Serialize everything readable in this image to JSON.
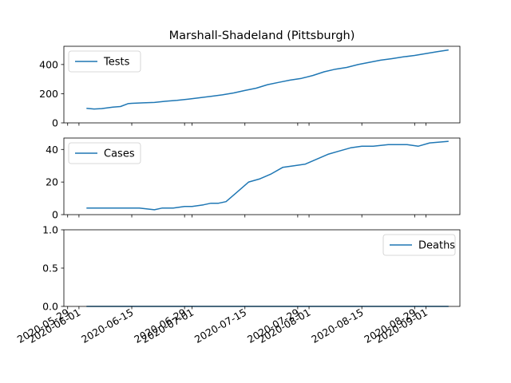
{
  "chart_data": [
    {
      "type": "line",
      "title": "Marshall-Shadeland (Pittsburgh)",
      "xlabel": "",
      "ylabel": "",
      "x_range": [
        "2020-05-28",
        "2020-09-10"
      ],
      "ylim": [
        0,
        525
      ],
      "yticks": [
        "0",
        "200",
        "400"
      ],
      "grid": false,
      "legend": "top-left",
      "x": [
        "2020-06-03",
        "2020-06-05",
        "2020-06-07",
        "2020-06-10",
        "2020-06-12",
        "2020-06-14",
        "2020-06-15",
        "2020-06-18",
        "2020-06-21",
        "2020-06-24",
        "2020-06-27",
        "2020-06-30",
        "2020-07-03",
        "2020-07-06",
        "2020-07-09",
        "2020-07-12",
        "2020-07-15",
        "2020-07-18",
        "2020-07-21",
        "2020-07-24",
        "2020-07-27",
        "2020-07-30",
        "2020-08-02",
        "2020-08-05",
        "2020-08-08",
        "2020-08-11",
        "2020-08-14",
        "2020-08-17",
        "2020-08-20",
        "2020-08-23",
        "2020-08-26",
        "2020-08-29",
        "2020-09-01",
        "2020-09-04",
        "2020-09-07"
      ],
      "series": [
        {
          "name": "Tests",
          "color": "#1f77b4",
          "values": [
            100,
            95,
            98,
            108,
            112,
            132,
            134,
            137,
            140,
            148,
            154,
            163,
            172,
            182,
            192,
            205,
            222,
            238,
            262,
            278,
            293,
            305,
            325,
            350,
            368,
            380,
            400,
            415,
            430,
            440,
            452,
            462,
            475,
            488,
            500
          ]
        }
      ]
    },
    {
      "type": "line",
      "title": "",
      "xlabel": "",
      "ylabel": "",
      "x_range": [
        "2020-05-28",
        "2020-09-10"
      ],
      "ylim": [
        0,
        47
      ],
      "yticks": [
        "0",
        "20",
        "40"
      ],
      "grid": false,
      "legend": "top-left",
      "x": [
        "2020-06-03",
        "2020-06-10",
        "2020-06-17",
        "2020-06-21",
        "2020-06-23",
        "2020-06-26",
        "2020-06-29",
        "2020-07-01",
        "2020-07-04",
        "2020-07-06",
        "2020-07-08",
        "2020-07-10",
        "2020-07-13",
        "2020-07-16",
        "2020-07-19",
        "2020-07-22",
        "2020-07-25",
        "2020-07-28",
        "2020-07-31",
        "2020-08-03",
        "2020-08-06",
        "2020-08-09",
        "2020-08-12",
        "2020-08-15",
        "2020-08-18",
        "2020-08-22",
        "2020-08-24",
        "2020-08-27",
        "2020-08-30",
        "2020-09-02",
        "2020-09-07"
      ],
      "series": [
        {
          "name": "Cases",
          "color": "#1f77b4",
          "values": [
            4,
            4,
            4,
            3,
            4,
            4,
            5,
            5,
            6,
            7,
            7,
            8,
            14,
            20,
            22,
            25,
            29,
            30,
            31,
            34,
            37,
            39,
            41,
            42,
            42,
            43,
            43,
            43,
            42,
            44,
            45
          ]
        }
      ]
    },
    {
      "type": "line",
      "title": "",
      "xlabel": "",
      "ylabel": "",
      "x_range": [
        "2020-05-28",
        "2020-09-10"
      ],
      "ylim": [
        0,
        1
      ],
      "yticks": [
        "0.0",
        "0.5",
        "1.0"
      ],
      "grid": false,
      "legend": "top-right",
      "x": [
        "2020-06-03",
        "2020-09-07"
      ],
      "series": [
        {
          "name": "Deaths",
          "color": "#1f77b4",
          "values": [
            0,
            0
          ]
        }
      ]
    }
  ],
  "x_ticks": [
    {
      "date": "2020-05-29",
      "label": "2020-05-29"
    },
    {
      "date": "2020-06-01",
      "label": "2020-06-01"
    },
    {
      "date": "2020-06-15",
      "label": "2020-06-15"
    },
    {
      "date": "2020-06-29",
      "label": "2020-06-29"
    },
    {
      "date": "2020-07-01",
      "label": "2020-07-01"
    },
    {
      "date": "2020-07-15",
      "label": "2020-07-15"
    },
    {
      "date": "2020-07-29",
      "label": "2020-07-29"
    },
    {
      "date": "2020-08-01",
      "label": "2020-08-01"
    },
    {
      "date": "2020-08-15",
      "label": "2020-08-15"
    },
    {
      "date": "2020-08-29",
      "label": "2020-08-29"
    },
    {
      "date": "2020-09-01",
      "label": "2020-09-01"
    }
  ]
}
